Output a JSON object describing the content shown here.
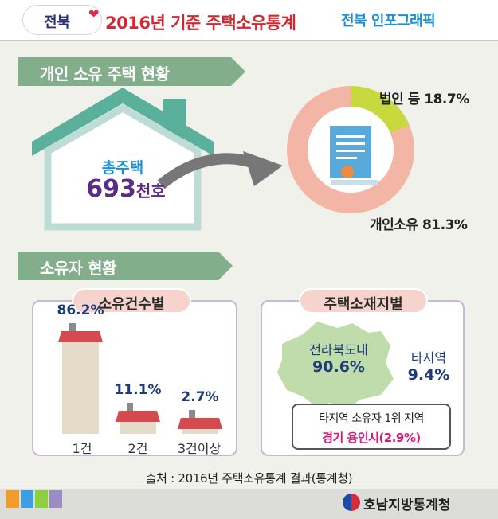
{
  "header": {
    "logo": "전북",
    "title": "2016년 기준 주택소유통계",
    "series": "전북 인포그래픽"
  },
  "section1": {
    "heading": "개인 소유 주택 현황",
    "total_label": "총주택",
    "total_number": "693",
    "total_unit": "천호",
    "donut": {
      "corporate_label": "법인 등 18.7%",
      "individual_label": "개인소유 81.3%",
      "corporate_pct": 18.7,
      "individual_pct": 81.3
    }
  },
  "section2": {
    "heading": "소유자 현황",
    "count_card": {
      "title": "소유건수별",
      "categories": [
        "1건",
        "2건",
        "3건이상"
      ],
      "values": [
        86.2,
        11.1,
        2.7
      ],
      "value_labels": [
        "86.2%",
        "11.1%",
        "2.7%"
      ]
    },
    "location_card": {
      "title": "주택소재지별",
      "in_region_label": "전라북도내",
      "in_region_value": "90.6%",
      "other_region_label": "타지역",
      "other_region_value": "9.4%",
      "top_region_title": "타지역 소유자 1위 지역",
      "top_region_value": "경기 용인시(2.9%)"
    }
  },
  "source": "출처 : 2016년 주택소유통계 결과(통계청)",
  "footer": {
    "agency": "호남지방통계청",
    "colors": [
      "#f39b2a",
      "#3d9ee0",
      "#8ccf3f",
      "#9b8cc2"
    ]
  },
  "chart_data": {
    "type": "bar",
    "title": "소유건수별",
    "categories": [
      "1건",
      "2건",
      "3건이상"
    ],
    "values": [
      86.2,
      11.1,
      2.7
    ],
    "ylim": [
      0,
      100
    ]
  }
}
